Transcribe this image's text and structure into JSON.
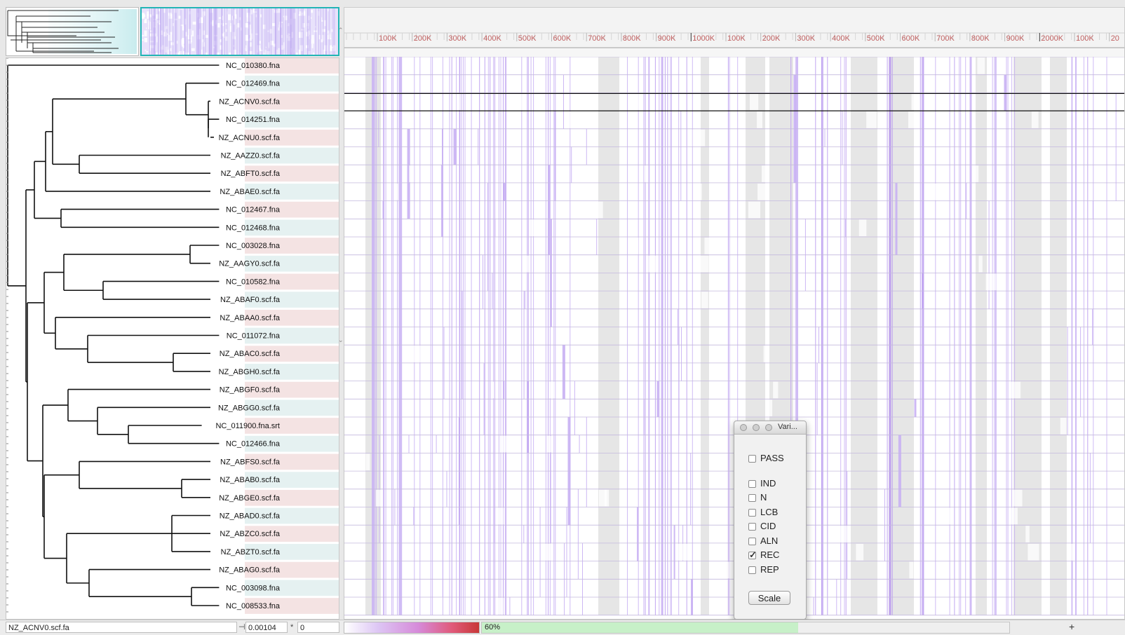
{
  "ruler": {
    "ticks": [
      "100K",
      "200K",
      "300K",
      "400K",
      "500K",
      "600K",
      "700K",
      "800K",
      "900K",
      "1000K",
      "100K",
      "200K",
      "300K",
      "400K",
      "500K",
      "600K",
      "700K",
      "800K",
      "900K",
      "2000K",
      "100K",
      "20"
    ]
  },
  "taxa": [
    "NC_010380.fna",
    "NC_012469.fna",
    "NZ_ACNV0.scf.fa",
    "NC_014251.fna",
    "NZ_ACNU0.scf.fa",
    "NZ_AAZZ0.scf.fa",
    "NZ_ABFT0.scf.fa",
    "NZ_ABAE0.scf.fa",
    "NC_012467.fna",
    "NC_012468.fna",
    "NC_003028.fna",
    "NZ_AAGY0.scf.fa",
    "NC_010582.fna",
    "NZ_ABAF0.scf.fa",
    "NZ_ABAA0.scf.fa",
    "NC_011072.fna",
    "NZ_ABAC0.scf.fa",
    "NZ_ABGH0.scf.fa",
    "NZ_ABGF0.scf.fa",
    "NZ_ABGG0.scf.fa",
    "NC_011900.fna.srt",
    "NC_012466.fna",
    "NZ_ABFS0.scf.fa",
    "NZ_ABAB0.scf.fa",
    "NZ_ABGE0.scf.fa",
    "NZ_ABAD0.scf.fa",
    "NZ_ABZC0.scf.fa",
    "NZ_ABZT0.scf.fa",
    "NZ_ABAG0.scf.fa",
    "NC_003098.fna",
    "NC_008533.fna"
  ],
  "selected_taxon_index": 2,
  "status": {
    "selected_taxon": "NZ_ACNV0.scf.fa",
    "distance_marker": "⊣",
    "distance": "0.00104",
    "count_marker": "*",
    "count": "0",
    "progress_label": "60%",
    "progress": 0.6,
    "plus": "+"
  },
  "dialog": {
    "title": "Vari...",
    "options": [
      {
        "label": "PASS",
        "checked": false
      },
      {
        "label": "IND",
        "checked": false
      },
      {
        "label": "N",
        "checked": false
      },
      {
        "label": "LCB",
        "checked": false
      },
      {
        "label": "CID",
        "checked": false
      },
      {
        "label": "ALN",
        "checked": false
      },
      {
        "label": "REC",
        "checked": true
      },
      {
        "label": "REP",
        "checked": false
      }
    ],
    "scale_label": "Scale"
  },
  "colors": {
    "variant": "#c8b0f3",
    "variant_dark": "#b796ef",
    "gray_band": "#e6e6e6",
    "overview_border": "#23b5b5",
    "label_pink": "#f1dcdc",
    "label_teal": "#dfeded",
    "tick_red": "#c06060"
  }
}
